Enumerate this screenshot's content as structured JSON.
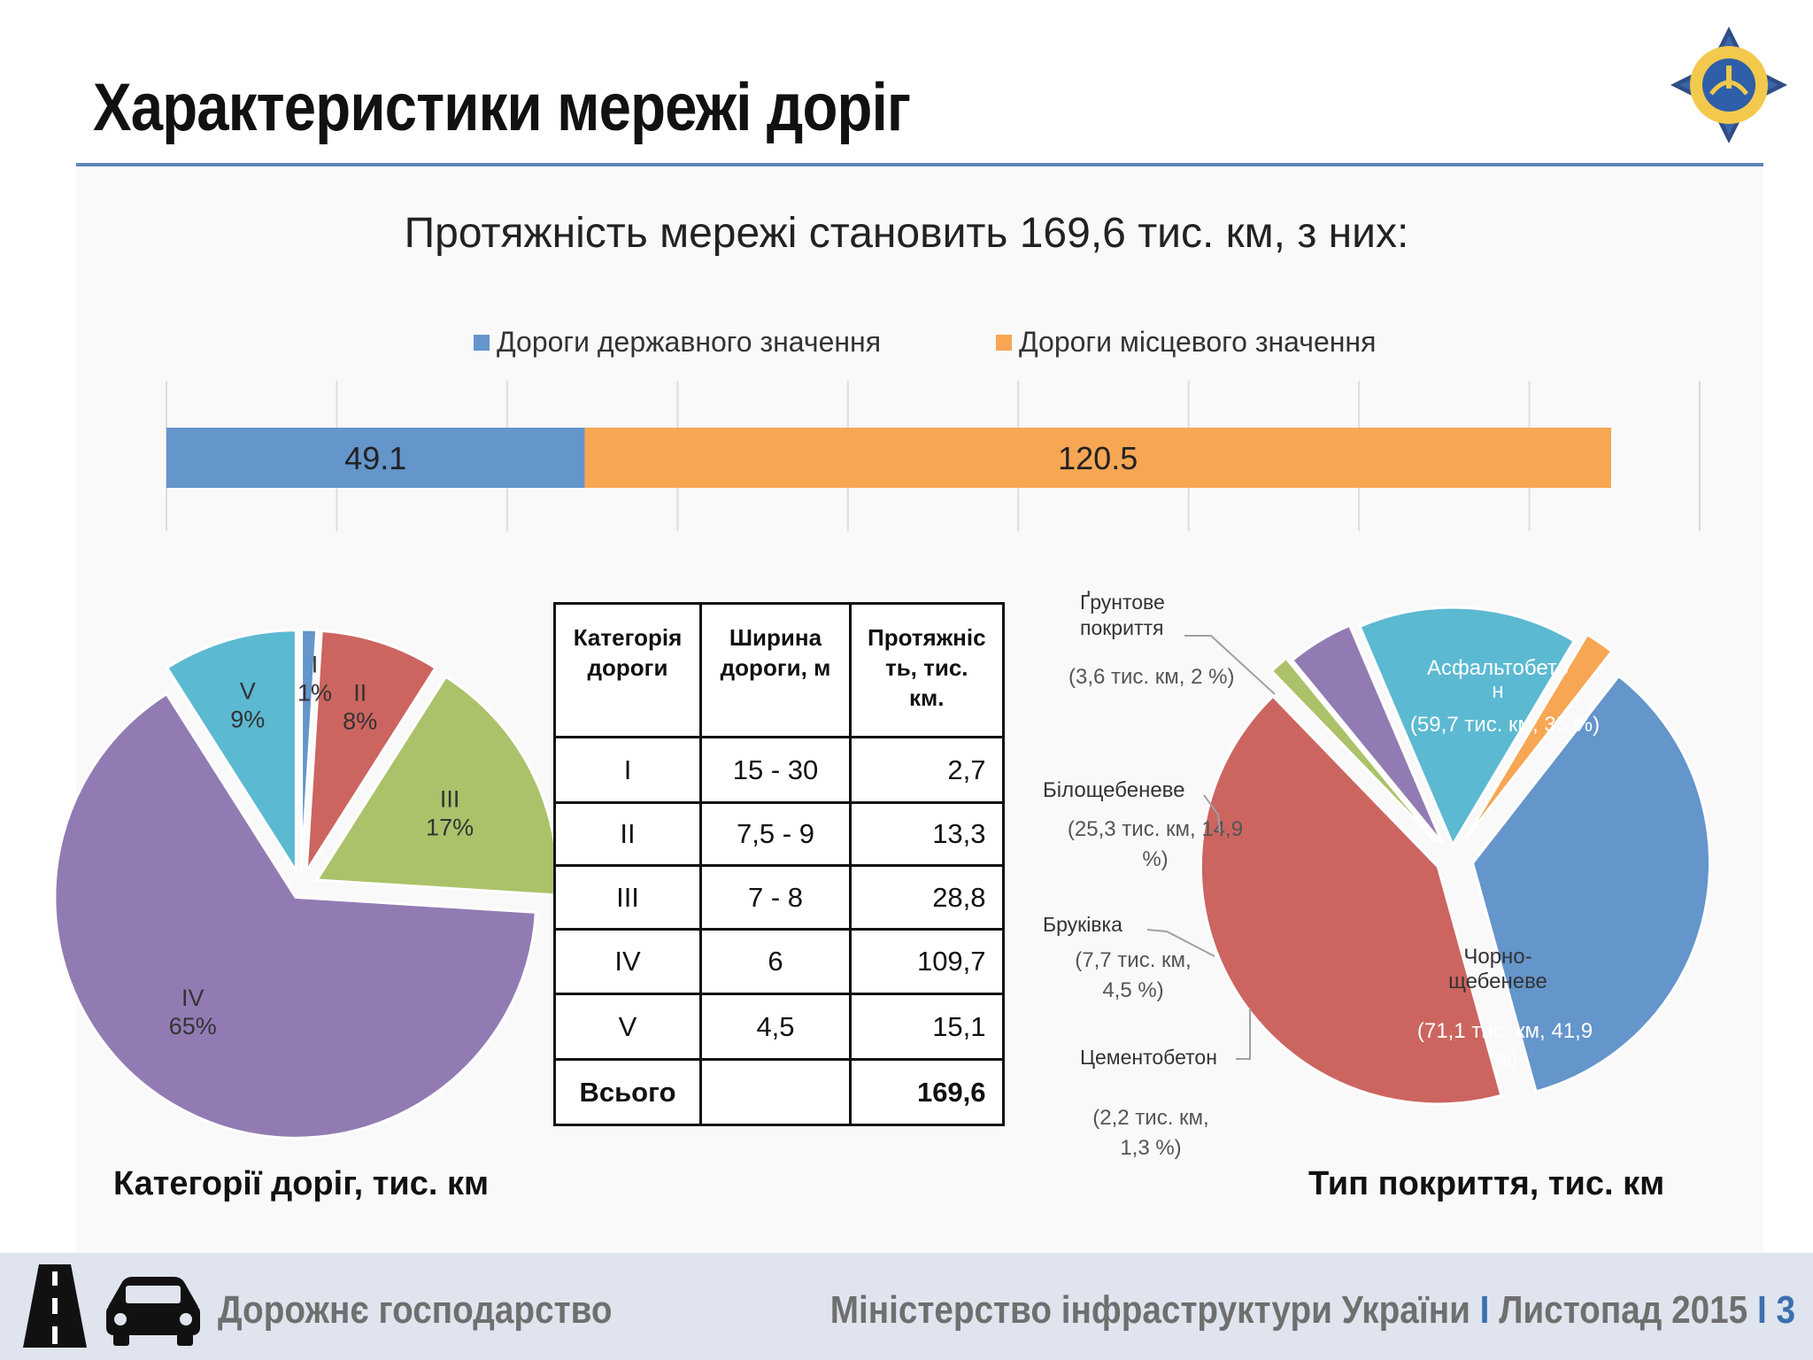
{
  "slide": {
    "title": "Характеристики мережі доріг",
    "subtitle": "Протяжність мережі становить 169,6 тис. км, з них:",
    "caption_left": "Категорії доріг, тис. км",
    "caption_right": "Тип покриття, тис. км"
  },
  "footer": {
    "left": "Дорожнє господарство",
    "ministry": "Міністерство інфраструктури України",
    "separator": "I",
    "date": "Листопад 2015",
    "page": "3"
  },
  "table": {
    "headers": [
      "Категорія дороги",
      "Ширина дороги, м",
      "Протяжніс ть, тис. км."
    ],
    "rows": [
      [
        "I",
        "15 - 30",
        "2,7"
      ],
      [
        "II",
        "7,5 - 9",
        "13,3"
      ],
      [
        "III",
        "7 - 8",
        "28,8"
      ],
      [
        "IV",
        "6",
        "109,7"
      ],
      [
        "V",
        "4,5",
        "15,1"
      ]
    ],
    "total": [
      "Всього",
      "",
      "169,6"
    ]
  },
  "chart_data": [
    {
      "type": "bar",
      "orientation": "horizontal-stacked",
      "series": [
        {
          "name": "Дороги державного значення",
          "values": [
            49.1
          ],
          "label": "49.1",
          "color": "#6495cb"
        },
        {
          "name": "Дороги місцевого значення",
          "values": [
            120.5
          ],
          "label": "120.5",
          "color": "#f7a654"
        }
      ],
      "xlim": [
        0,
        180
      ],
      "grid": true,
      "legend": "top"
    },
    {
      "type": "pie",
      "slices": [
        {
          "name": "I",
          "value": 1,
          "label": "1%",
          "color": "#6495cb"
        },
        {
          "name": "II",
          "value": 8,
          "label": "8%",
          "color": "#cc6560"
        },
        {
          "name": "III",
          "value": 17,
          "label": "17%",
          "color": "#abc26a"
        },
        {
          "name": "IV",
          "value": 65,
          "label": "65%",
          "color": "#927bb3"
        },
        {
          "name": "V",
          "value": 9,
          "label": "9%",
          "color": "#5cb9d2"
        }
      ]
    },
    {
      "type": "pie",
      "slices": [
        {
          "name": "Асфальтобето н",
          "value": 35,
          "detail": "(59,7 тис. км, 35 %)",
          "color": "#6495cb"
        },
        {
          "name": "Чорно- щебеневе",
          "value": 41.9,
          "detail": "(71,1 тис. км, 41,9 %)",
          "color": "#cc6560"
        },
        {
          "name": "Цементобетон",
          "value": 1.3,
          "detail": "(2,2 тис. км, 1,3 %)",
          "color": "#abc26a"
        },
        {
          "name": "Бруківка",
          "value": 4.5,
          "detail": "(7,7 тис. км, 4,5 %)",
          "color": "#927bb3"
        },
        {
          "name": "Білощебеневе",
          "value": 14.9,
          "detail": "(25,3 тис. км, 14,9 %)",
          "color": "#5cb9d2"
        },
        {
          "name": "Ґрунтове покриття",
          "value": 2,
          "detail": "(3,6 тис. км, 2 %)",
          "color": "#f7a654"
        }
      ]
    }
  ]
}
